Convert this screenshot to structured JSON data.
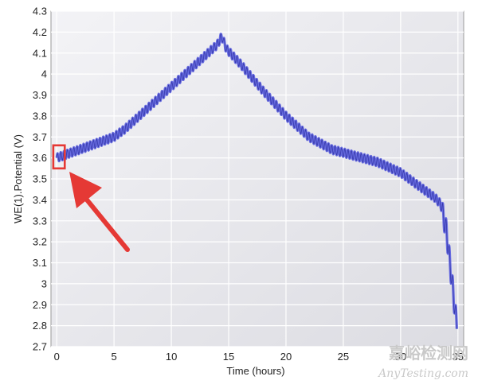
{
  "chart_data": {
    "type": "line",
    "title": "",
    "xlabel": "Time (hours)",
    "ylabel": "WE(1).Potential (V)",
    "xlim": [
      -0.5,
      35.5
    ],
    "ylim": [
      2.7,
      4.3
    ],
    "xticks": [
      0,
      5,
      10,
      15,
      20,
      25,
      30,
      35
    ],
    "yticks": [
      2.7,
      2.8,
      2.9,
      3.0,
      3.1,
      3.2,
      3.3,
      3.4,
      3.5,
      3.6,
      3.7,
      3.8,
      3.9,
      4.0,
      4.1,
      4.2,
      4.3
    ],
    "ytick_labels": [
      "2.7",
      "2.8",
      "2.9",
      "3",
      "3.1",
      "3.2",
      "3.3",
      "3.4",
      "3.5",
      "3.6",
      "3.7",
      "3.8",
      "3.9",
      "4",
      "4.1",
      "4.2",
      "4.3"
    ],
    "grid": true,
    "series": [
      {
        "color": "#5a5ee0",
        "x": [
          0,
          0.5,
          1,
          2,
          3,
          4,
          5,
          6,
          7,
          8,
          9,
          10,
          11,
          12,
          13,
          14,
          14.4,
          14.8,
          16,
          18,
          20,
          22,
          24,
          26,
          28,
          30,
          31,
          32,
          33,
          33.5,
          34,
          34.3,
          34.6,
          34.8,
          34.9
        ],
        "y": [
          3.6,
          3.61,
          3.62,
          3.64,
          3.66,
          3.68,
          3.7,
          3.74,
          3.79,
          3.84,
          3.89,
          3.94,
          3.99,
          4.04,
          4.09,
          4.14,
          4.18,
          4.12,
          4.05,
          3.92,
          3.8,
          3.7,
          3.64,
          3.61,
          3.58,
          3.53,
          3.49,
          3.45,
          3.41,
          3.38,
          3.25,
          3.1,
          2.95,
          2.85,
          2.8
        ]
      }
    ],
    "annotation": {
      "type": "highlight-box",
      "x_range": [
        -0.3,
        0.7
      ],
      "y_range": [
        3.55,
        3.66
      ],
      "color": "#e53935"
    }
  },
  "watermark": {
    "cn_text": "嘉峪检测网",
    "en_text": "AnyTesting.com"
  }
}
